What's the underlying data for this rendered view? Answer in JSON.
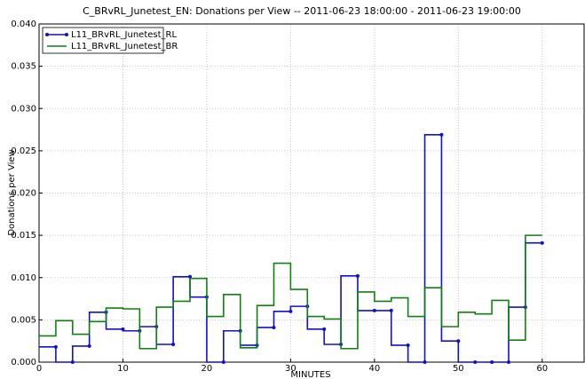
{
  "chart_data": {
    "type": "step",
    "title": "C_BRvRL_Junetest_EN:  Donations per View -- 2011-06-23 18:00:00 - 2011-06-23 19:00:00",
    "xlabel": "MINUTES",
    "ylabel": "Donations per View",
    "step": "pre",
    "x": [
      2,
      4,
      6,
      8,
      10,
      12,
      14,
      16,
      18,
      20,
      22,
      24,
      26,
      28,
      30,
      32,
      34,
      36,
      38,
      40,
      42,
      44,
      46,
      48,
      50,
      52,
      54,
      56,
      58,
      60
    ],
    "series": [
      {
        "name": "L11_BRvRL_Junetest_RL",
        "color": "#1010d0",
        "marker": true,
        "values": [
          0.0018,
          0,
          0.0019,
          0.0059,
          0.0039,
          0.0037,
          0.0042,
          0.0021,
          0.0101,
          0.0077,
          0,
          0.0037,
          0.002,
          0.0041,
          0.006,
          0.0066,
          0.0039,
          0.0021,
          0.0102,
          0.0061,
          0.0061,
          0.002,
          0,
          0.0269,
          0.0025,
          0,
          0,
          0,
          0.0065,
          0.0141
        ]
      },
      {
        "name": "L11_BRvRL_Junetest_BR",
        "color": "#108010",
        "marker": false,
        "values": [
          0.0031,
          0.0049,
          0.0033,
          0.0048,
          0.0064,
          0.0063,
          0.0016,
          0.0065,
          0.0072,
          0.0099,
          0.0054,
          0.008,
          0.0017,
          0.0067,
          0.0117,
          0.0086,
          0.0054,
          0.0051,
          0.0016,
          0.0083,
          0.0072,
          0.0076,
          0.0054,
          0.0088,
          0.0042,
          0.0059,
          0.0057,
          0.0073,
          0.0026,
          0.015
        ]
      }
    ],
    "xlim": [
      0,
      65
    ],
    "xticks": [
      0,
      10,
      20,
      30,
      40,
      50,
      60
    ],
    "ylim": [
      0,
      0.04
    ],
    "yticks": [
      {
        "value": 0,
        "label": "0.000"
      },
      {
        "value": 0.005,
        "label": "0.005"
      },
      {
        "value": 0.01,
        "label": "0.010"
      },
      {
        "value": 0.015,
        "label": "0.015"
      },
      {
        "value": 0.02,
        "label": "0.020"
      },
      {
        "value": 0.025,
        "label": "0.025"
      },
      {
        "value": 0.03,
        "label": "0.030"
      },
      {
        "value": 0.035,
        "label": "0.035"
      },
      {
        "value": 0.04,
        "label": "0.040"
      }
    ],
    "grid": true,
    "legend": "upper-left"
  }
}
